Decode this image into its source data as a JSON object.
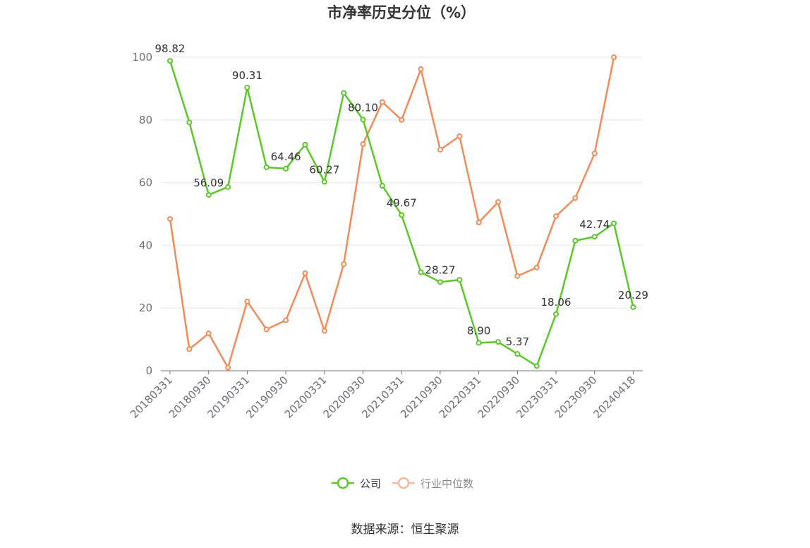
{
  "chart_data": {
    "type": "line",
    "title": "市净率历史分位（%）",
    "xlabel": "",
    "ylabel": "",
    "ylim": [
      0,
      100
    ],
    "yticks": [
      0,
      20,
      40,
      60,
      80,
      100
    ],
    "grid": true,
    "legend_position": "bottom",
    "x": [
      "20180331",
      "20180630",
      "20180930",
      "20181231",
      "20190331",
      "20190630",
      "20190930",
      "20191231",
      "20200331",
      "20200630",
      "20200930",
      "20201231",
      "20210331",
      "20210630",
      "20210930",
      "20211231",
      "20220331",
      "20220630",
      "20220930",
      "20221231",
      "20230331",
      "20230630",
      "20230930",
      "20231231",
      "20240418"
    ],
    "xtick_labels": [
      "20180331",
      "20180930",
      "20190331",
      "20190930",
      "20200331",
      "20200930",
      "20210331",
      "20210930",
      "20220331",
      "20220930",
      "20230331",
      "20230930",
      "20240418"
    ],
    "series": [
      {
        "name": "公司",
        "color": "#5cc72b",
        "values": [
          98.82,
          79.2,
          56.09,
          58.6,
          90.31,
          64.9,
          64.46,
          72.1,
          60.27,
          88.6,
          80.1,
          59.0,
          49.67,
          31.4,
          28.27,
          29.0,
          8.9,
          9.2,
          5.37,
          1.5,
          18.06,
          41.5,
          42.74,
          47.0,
          20.29
        ],
        "labels": {
          "0": "98.82",
          "2": "56.09",
          "4": "90.31",
          "6": "64.46",
          "8": "60.27",
          "10": "80.10",
          "12": "49.67",
          "14": "28.27",
          "16": "8.90",
          "18": "5.37",
          "20": "18.06",
          "22": "42.74",
          "24": "20.29"
        }
      },
      {
        "name": "行业中位数",
        "color": "#f08c5a",
        "values": [
          48.4,
          6.9,
          11.9,
          1.0,
          22.1,
          13.2,
          16.1,
          31.1,
          12.7,
          34.0,
          72.3,
          85.7,
          80.0,
          96.2,
          70.5,
          74.8,
          47.3,
          53.8,
          30.2,
          32.9,
          49.3,
          55.1,
          69.3,
          100.0,
          null
        ]
      }
    ],
    "source": "数据来源：恒生聚源"
  }
}
